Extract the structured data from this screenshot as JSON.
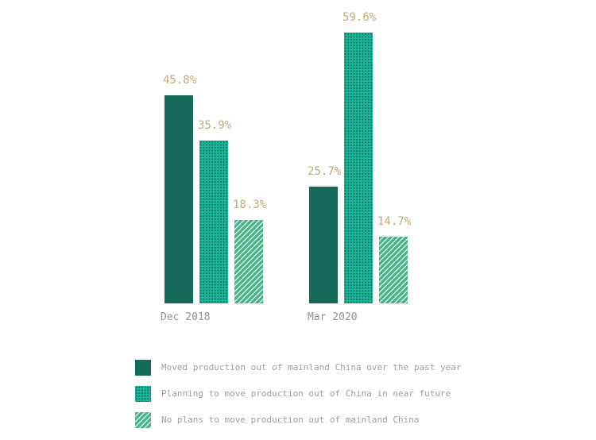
{
  "chart_data": {
    "type": "bar",
    "title": "",
    "categories": [
      "Dec 2018",
      "Mar 2020"
    ],
    "series": [
      {
        "name": "Moved production out of mainland China over the past year",
        "style": "solid",
        "color": "#166a59",
        "values": [
          45.8,
          25.7
        ]
      },
      {
        "name": "Planning to move production out of China in near future",
        "style": "dotted",
        "color": "#1db79a",
        "pattern_color": "#0a6b5b",
        "values": [
          35.9,
          59.6
        ]
      },
      {
        "name": "No plans to move production out of mainland China",
        "style": "hatched",
        "color": "#45b287",
        "pattern_color": "#d9efe3",
        "values": [
          18.3,
          14.7
        ]
      }
    ],
    "value_labels": [
      "45.8%",
      "25.7%",
      "35.9%",
      "59.6%",
      "18.3%",
      "14.7%"
    ],
    "ylim": [
      0,
      63
    ],
    "grid": false,
    "axes_visible": false,
    "legend_position": "bottom-left"
  },
  "colors": {
    "background": "#ffffff",
    "value_label": "#c6a776",
    "axis_label": "#8d9596",
    "legend_text": "#9aa0a0",
    "series1": "#166a59",
    "series2_bg": "#1db79a",
    "series2_dot": "#0a6b5b",
    "series3_bg": "#45b287",
    "series3_hatch": "#d9efe3"
  }
}
